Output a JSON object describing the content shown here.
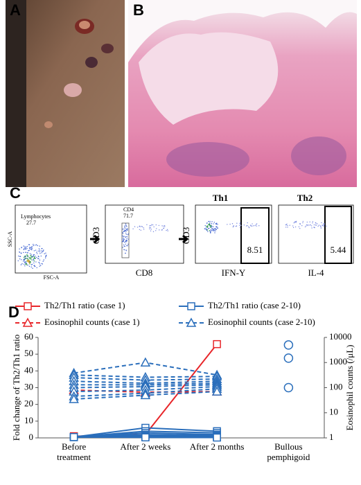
{
  "panels": {
    "a": "A",
    "b": "B",
    "c": "C",
    "d": "D"
  },
  "flow": {
    "gate1_name": "Lymphocytes",
    "gate1_value": "27.7",
    "gate1_y": "SSC-A",
    "gate1_x": "FSC-A",
    "gate2_name": "CD4",
    "gate2_value": "71.7",
    "plot2_y": "CD3",
    "plot2_x": "CD8",
    "th1": "Th1",
    "th2": "Th2",
    "plot3_y": "CD3",
    "plot3_x": "IFN-Y",
    "plot4_x": "IL-4",
    "th1_value": "8.51",
    "th2_value": "5.44"
  },
  "chart_data": {
    "type": "line",
    "categories": [
      "Before\ntreatment",
      "After 2 weeks",
      "After 2 months",
      "Bullous\npemphigoid"
    ],
    "ylabel": "Fold change of Th2/Th1 ratio",
    "y2label": "Eosinophil counts (/μL)",
    "ylim": [
      0,
      60
    ],
    "yticks": [
      0,
      10,
      20,
      30,
      40,
      50,
      60
    ],
    "y2lim": [
      1,
      10000
    ],
    "y2ticks": [
      1,
      10,
      100,
      1000,
      10000
    ],
    "y2scale": "log",
    "series": [
      {
        "name": "Th2/Th1 ratio (case 1)",
        "color": "#e8262a",
        "marker": "square",
        "dash": false,
        "values": [
          [
            1,
            2,
            56
          ]
        ]
      },
      {
        "name": "Eosinophil counts (case 1)",
        "color": "#e8262a",
        "marker": "triangle",
        "dash": true,
        "axis": "y2",
        "values": [
          [
            80,
            66,
            70
          ]
        ]
      },
      {
        "name": "Th2/Th1 ratio (case 2-10)",
        "color": "#2a6ebb",
        "marker": "square",
        "dash": false,
        "values": [
          [
            0.5,
            6,
            4
          ],
          [
            0.5,
            4,
            3
          ],
          [
            0.5,
            3,
            2
          ],
          [
            0.5,
            2,
            1.5
          ],
          [
            0.5,
            1.5,
            1
          ],
          [
            0.5,
            1,
            0.8
          ],
          [
            0.5,
            0.8,
            0.5
          ],
          [
            0.5,
            0.5,
            0.3
          ],
          [
            0.5,
            0.3,
            0.2
          ]
        ]
      },
      {
        "name": "Eosinophil counts (case 2-10)",
        "color": "#2a6ebb",
        "marker": "triangle",
        "dash": true,
        "axis": "y2",
        "values": [
          [
            380,
            1000,
            320
          ],
          [
            320,
            260,
            280
          ],
          [
            250,
            200,
            220
          ],
          [
            180,
            150,
            180
          ],
          [
            130,
            130,
            150
          ],
          [
            100,
            110,
            130
          ],
          [
            70,
            80,
            110
          ],
          [
            45,
            60,
            90
          ],
          [
            35,
            50,
            70
          ]
        ]
      },
      {
        "color": "#2a6ebb",
        "marker": "circle",
        "axis": "y2",
        "category": 3,
        "points": [
          5000,
          1500,
          100
        ]
      }
    ]
  }
}
